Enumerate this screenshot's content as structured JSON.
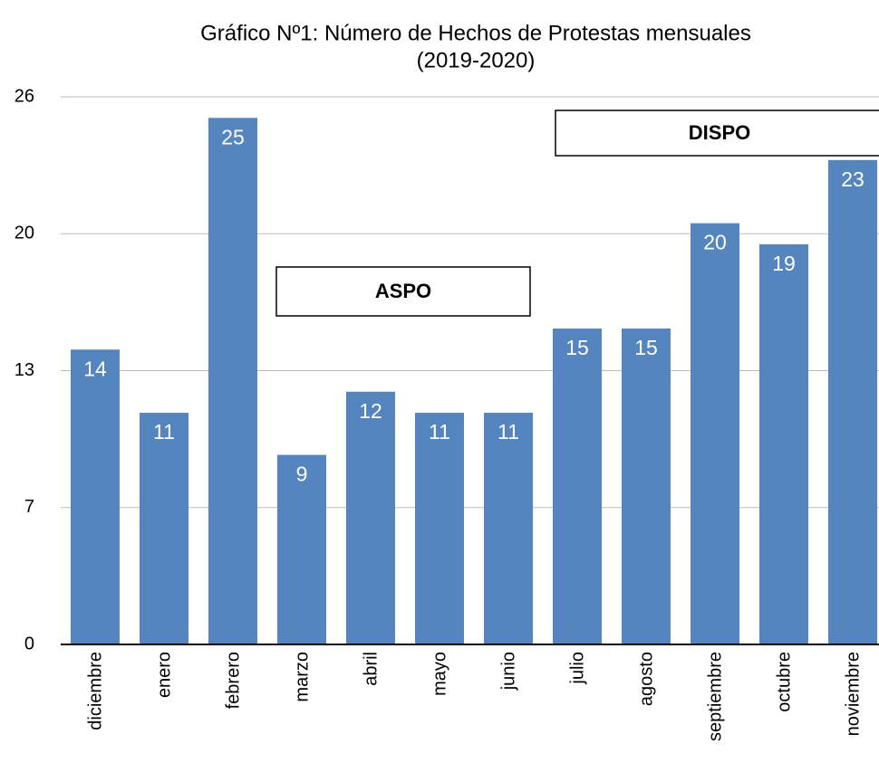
{
  "chart_data": {
    "type": "bar",
    "title": [
      "Gráfico Nº1: Número de Hechos de Protestas mensuales",
      "(2019-2020)"
    ],
    "categories": [
      "diciembre",
      "enero",
      "febrero",
      "marzo",
      "abril",
      "mayo",
      "junio",
      "julio",
      "agosto",
      "septiembre",
      "octubre",
      "noviembre"
    ],
    "values": [
      14,
      11,
      25,
      9,
      12,
      11,
      11,
      15,
      15,
      20,
      19,
      23
    ],
    "color": "#5585bf",
    "ylim": [
      0,
      26
    ],
    "yticks": [
      0,
      {
        "value": 6.5,
        "label": "7"
      },
      13,
      {
        "value": 19.5,
        "label": "20"
      },
      26
    ],
    "grid": true,
    "annotations": [
      "ASPO",
      "DISPO"
    ]
  }
}
